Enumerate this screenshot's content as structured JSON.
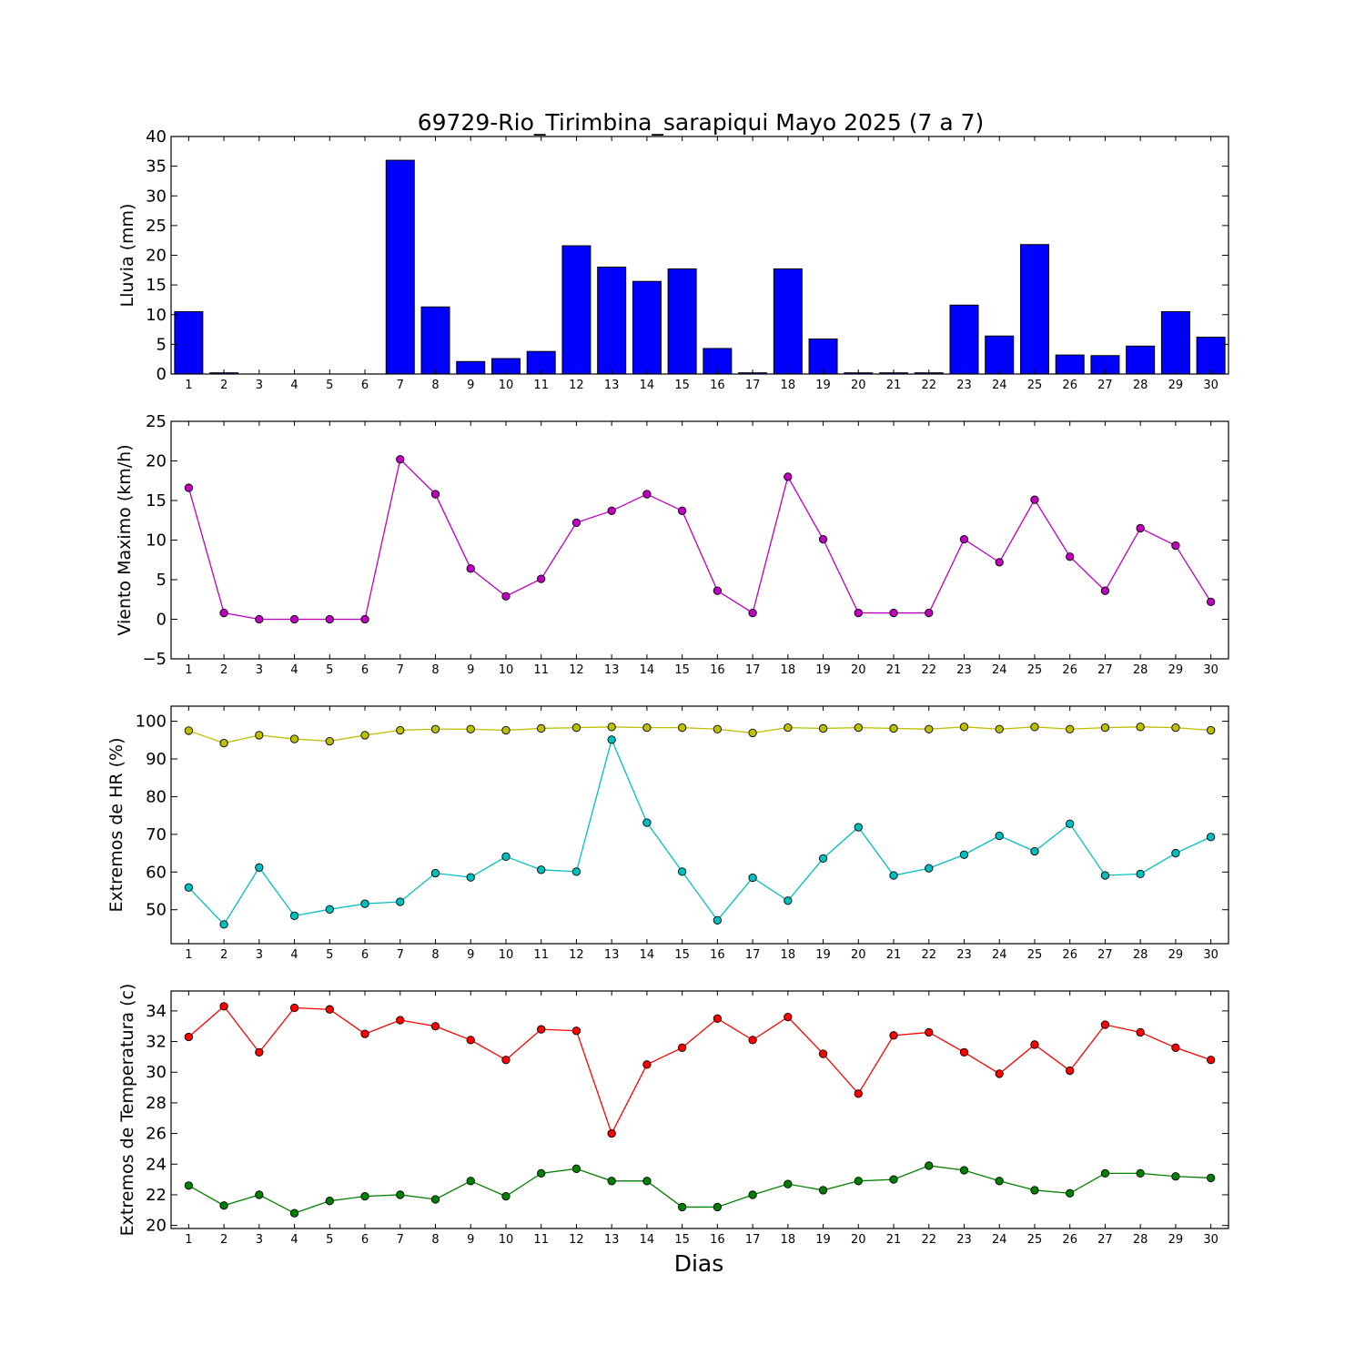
{
  "title": "69729-Rio_Tirimbina_sarapiqui Mayo 2025  (7 a 7)",
  "xlabel": "Dias",
  "chart_data": [
    {
      "id": "lluvia",
      "type": "bar",
      "ylabel": "Lluvia (mm)",
      "ylim": [
        0,
        40
      ],
      "yticks": [
        0,
        5,
        10,
        15,
        20,
        25,
        30,
        35,
        40
      ],
      "x": [
        1,
        2,
        3,
        4,
        5,
        6,
        7,
        8,
        9,
        10,
        11,
        12,
        13,
        14,
        15,
        16,
        17,
        18,
        19,
        20,
        21,
        22,
        23,
        24,
        25,
        26,
        27,
        28,
        29,
        30
      ],
      "series": [
        {
          "color": "#0000ff",
          "values": [
            10.5,
            0.2,
            0.0,
            0.0,
            0.0,
            0.0,
            36.0,
            11.3,
            2.1,
            2.6,
            3.8,
            21.6,
            18.0,
            15.6,
            17.7,
            4.3,
            0.2,
            17.7,
            5.9,
            0.2,
            0.2,
            0.2,
            11.6,
            6.4,
            21.8,
            3.2,
            3.1,
            4.7,
            10.5,
            6.2
          ]
        }
      ]
    },
    {
      "id": "viento",
      "type": "line",
      "ylabel": "Viento Maximo (km/h)",
      "ylim": [
        -5,
        25
      ],
      "yticks": [
        -5,
        0,
        5,
        10,
        15,
        20,
        25
      ],
      "x": [
        1,
        2,
        3,
        4,
        5,
        6,
        7,
        8,
        9,
        10,
        11,
        12,
        13,
        14,
        15,
        16,
        17,
        18,
        19,
        20,
        21,
        22,
        23,
        24,
        25,
        26,
        27,
        28,
        29,
        30
      ],
      "series": [
        {
          "color": "#bf00bf",
          "values": [
            16.6,
            0.8,
            0,
            0,
            0,
            0,
            20.2,
            15.8,
            6.4,
            2.9,
            5.1,
            12.2,
            13.7,
            15.8,
            13.7,
            3.6,
            0.8,
            18.0,
            10.1,
            0.8,
            0.8,
            0.8,
            10.1,
            7.2,
            15.1,
            7.9,
            3.6,
            11.5,
            9.3,
            2.2
          ]
        }
      ]
    },
    {
      "id": "hr",
      "type": "line",
      "ylabel": "Extremos de HR (%)",
      "ylim": [
        41,
        104
      ],
      "yticks": [
        50,
        60,
        70,
        80,
        90,
        100
      ],
      "x": [
        1,
        2,
        3,
        4,
        5,
        6,
        7,
        8,
        9,
        10,
        11,
        12,
        13,
        14,
        15,
        16,
        17,
        18,
        19,
        20,
        21,
        22,
        23,
        24,
        25,
        26,
        27,
        28,
        29,
        30
      ],
      "series": [
        {
          "color": "#bfbf00",
          "values": [
            97.5,
            94.2,
            96.3,
            95.3,
            94.7,
            96.3,
            97.6,
            97.9,
            97.9,
            97.6,
            98.1,
            98.3,
            98.5,
            98.3,
            98.3,
            97.9,
            96.9,
            98.3,
            98.1,
            98.3,
            98.1,
            97.9,
            98.5,
            97.9,
            98.5,
            97.9,
            98.3,
            98.5,
            98.3,
            97.6
          ]
        },
        {
          "color": "#00bfbf",
          "values": [
            55.9,
            46.1,
            61.2,
            48.4,
            50.1,
            51.6,
            52.1,
            59.7,
            58.6,
            64.1,
            60.6,
            60.1,
            95.1,
            73.1,
            60.1,
            47.2,
            58.5,
            52.4,
            63.6,
            71.9,
            59.1,
            61.0,
            64.6,
            69.6,
            65.5,
            72.8,
            59.1,
            59.5,
            65.0,
            69.3
          ]
        }
      ]
    },
    {
      "id": "temperatura",
      "type": "line",
      "ylabel": "Extremos de Temperatura (c)",
      "ylim": [
        19.8,
        35.3
      ],
      "yticks": [
        20,
        22,
        24,
        26,
        28,
        30,
        32,
        34
      ],
      "x": [
        1,
        2,
        3,
        4,
        5,
        6,
        7,
        8,
        9,
        10,
        11,
        12,
        13,
        14,
        15,
        16,
        17,
        18,
        19,
        20,
        21,
        22,
        23,
        24,
        25,
        26,
        27,
        28,
        29,
        30
      ],
      "series": [
        {
          "color": "#ff0000",
          "values": [
            32.3,
            34.3,
            31.3,
            34.2,
            34.1,
            32.5,
            33.4,
            33.0,
            32.1,
            30.8,
            32.8,
            32.7,
            26.0,
            30.5,
            31.6,
            33.5,
            32.1,
            33.6,
            31.2,
            28.6,
            32.4,
            32.6,
            31.3,
            29.9,
            31.8,
            30.1,
            33.1,
            32.6,
            31.6,
            30.8
          ]
        },
        {
          "color": "#008000",
          "values": [
            22.6,
            21.3,
            22.0,
            20.8,
            21.6,
            21.9,
            22.0,
            21.7,
            22.9,
            21.9,
            23.4,
            23.7,
            22.9,
            22.9,
            21.2,
            21.2,
            22.0,
            22.7,
            22.3,
            22.9,
            23.0,
            23.9,
            23.6,
            22.9,
            22.3,
            22.1,
            23.4,
            23.4,
            23.2,
            23.1
          ]
        }
      ]
    }
  ]
}
